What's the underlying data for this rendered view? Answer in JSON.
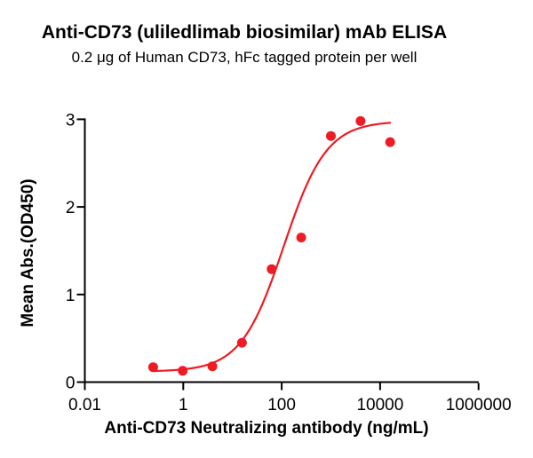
{
  "chart_data": {
    "type": "scatter",
    "title": "Anti-CD73 (uliledlimab biosimilar) mAb ELISA",
    "subtitle": "0.2 μg of Human CD73, hFc tagged protein per well",
    "xlabel": "Anti-CD73 Neutralizing antibody (ng/mL)",
    "ylabel": "Mean Abs.(OD450)",
    "x_scale": "log10",
    "xlim": [
      0.01,
      1000000
    ],
    "ylim": [
      0,
      3
    ],
    "x_tick_values": [
      0.01,
      1,
      100,
      10000,
      1000000
    ],
    "x_tick_labels": [
      "0.01",
      "1",
      "100",
      "10000",
      "1000000"
    ],
    "y_tick_values": [
      0,
      1,
      2,
      3
    ],
    "y_tick_labels": [
      "0",
      "1",
      "2",
      "3"
    ],
    "grid": false,
    "legend": null,
    "series": [
      {
        "marker": "circle",
        "color": "#ED1C24",
        "x": [
          0.244,
          0.977,
          3.906,
          15.625,
          62.5,
          250,
          1000,
          4000,
          16000
        ],
        "y": [
          0.17,
          0.13,
          0.18,
          0.45,
          1.29,
          1.65,
          2.81,
          2.98,
          2.74
        ]
      }
    ],
    "fit_curve": {
      "model": "4PL-sigmoid",
      "color": "#ED1C24",
      "bottom": 0.12,
      "top": 2.98,
      "ec50": 110,
      "hill": 1.0,
      "x_range": [
        0.244,
        16000
      ]
    },
    "axis_color": "#000000"
  }
}
